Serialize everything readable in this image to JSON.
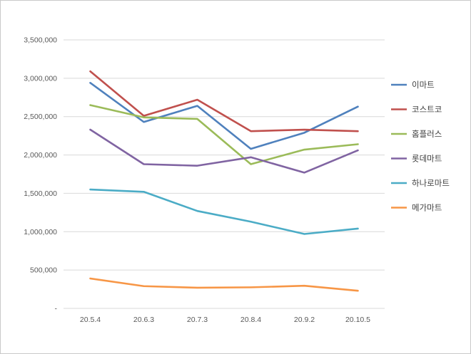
{
  "chart_data": {
    "type": "line",
    "title": "",
    "xlabel": "",
    "ylabel": "",
    "x": [
      "20.5.4",
      "20.6.3",
      "20.7.3",
      "20.8.4",
      "20.9.2",
      "20.10.5"
    ],
    "series": [
      {
        "name": "이마트",
        "color": "#4F81BD",
        "values": [
          2940000,
          2430000,
          2640000,
          2080000,
          2290000,
          2630000
        ]
      },
      {
        "name": "코스트코",
        "color": "#C0504D",
        "values": [
          3090000,
          2510000,
          2720000,
          2310000,
          2330000,
          2310000
        ]
      },
      {
        "name": "홈플러스",
        "color": "#9BBB59",
        "values": [
          2650000,
          2490000,
          2470000,
          1880000,
          2070000,
          2140000
        ]
      },
      {
        "name": "롯데마트",
        "color": "#8064A2",
        "values": [
          2330000,
          1880000,
          1860000,
          1970000,
          1770000,
          2060000
        ]
      },
      {
        "name": "하나로마트",
        "color": "#4BACC6",
        "values": [
          1550000,
          1520000,
          1270000,
          1130000,
          970000,
          1040000
        ]
      },
      {
        "name": "메가마트",
        "color": "#F79646",
        "values": [
          390000,
          290000,
          270000,
          275000,
          295000,
          230000
        ]
      }
    ],
    "ylim": [
      0,
      3500000
    ],
    "ytick_step": 500000,
    "ytick_labels": [
      "-",
      "500,000",
      "1,000,000",
      "1,500,000",
      "2,000,000",
      "2,500,000",
      "3,000,000",
      "3,500,000"
    ],
    "grid": true,
    "legend_position": "right",
    "gridline_color": "#d9d9d9",
    "axis_label_color": "#595959",
    "legend_label_color": "#404040"
  }
}
